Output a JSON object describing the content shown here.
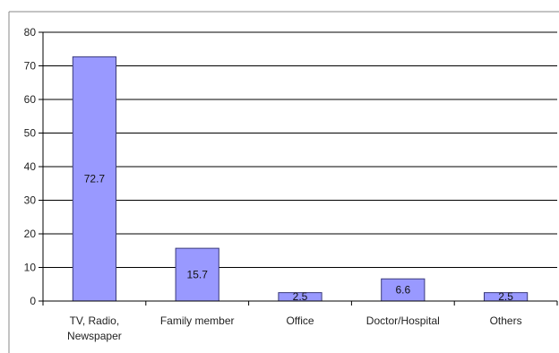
{
  "chart_data": {
    "type": "bar",
    "categories": [
      [
        "TV, Radio,",
        "Newspaper"
      ],
      [
        "Family member"
      ],
      [
        "Office"
      ],
      [
        "Doctor/Hospital"
      ],
      [
        "Others"
      ]
    ],
    "values": [
      72.7,
      15.7,
      2.5,
      6.6,
      2.5
    ],
    "data_labels": [
      "72.7",
      "15.7",
      "2.5",
      "6.6",
      "2.5"
    ],
    "title": "",
    "xlabel": "",
    "ylabel": "",
    "ylim": [
      0,
      80
    ],
    "yticks": [
      0,
      10,
      20,
      30,
      40,
      50,
      60,
      70,
      80
    ],
    "grid": true,
    "legend": "none",
    "colors": {
      "bar_fill": "#9999ff",
      "bar_stroke": "#3a3a7a",
      "grid": "#000000",
      "axis": "#000000"
    }
  }
}
